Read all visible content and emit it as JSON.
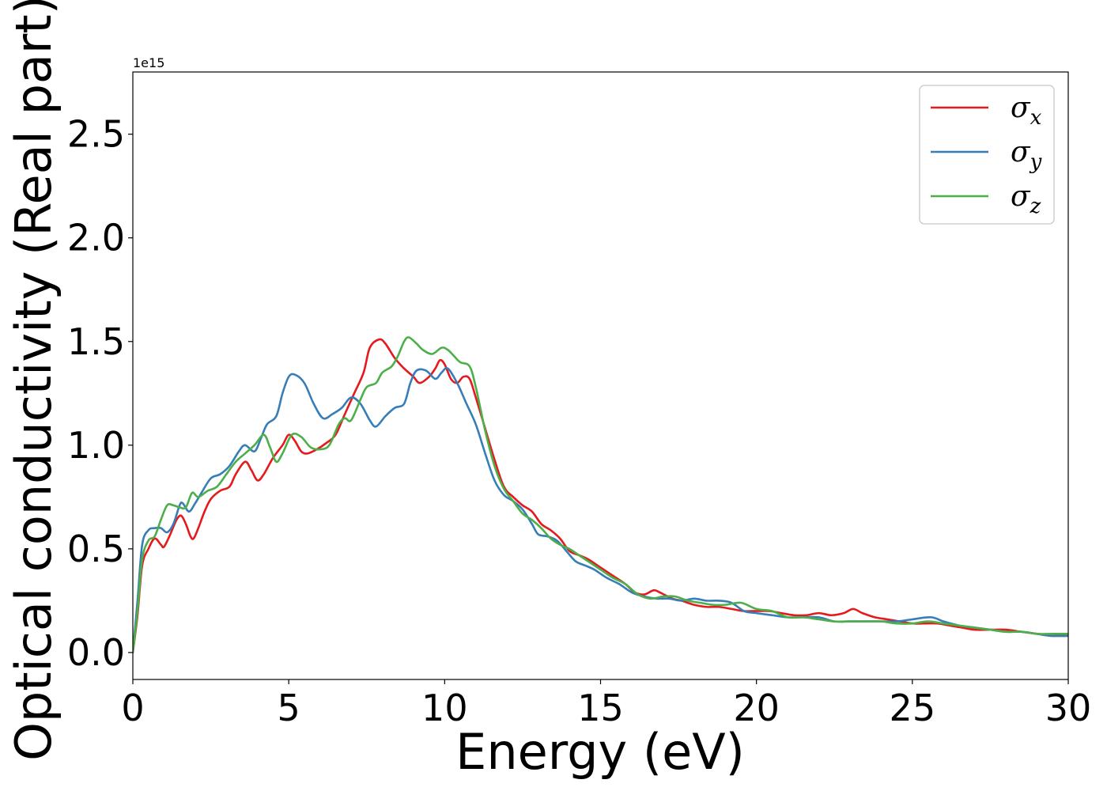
{
  "chart_data": {
    "type": "line",
    "xlabel": "Energy (eV)",
    "ylabel": "Optical conductivity (Real part)",
    "y_offset_label": "1e15",
    "y_scale_factor": 1000000000000000.0,
    "xlim": [
      0,
      30
    ],
    "ylim": [
      -0.13,
      2.8
    ],
    "x_ticks": [
      0,
      5,
      10,
      15,
      20,
      25,
      30
    ],
    "x_tick_labels": [
      "0",
      "5",
      "10",
      "15",
      "20",
      "25",
      "30"
    ],
    "y_ticks": [
      0.0,
      0.5,
      1.0,
      1.5,
      2.0,
      2.5
    ],
    "y_tick_labels": [
      "0.0",
      "0.5",
      "1.0",
      "1.5",
      "2.0",
      "2.5"
    ],
    "grid": false,
    "legend_position": "top-right",
    "series": [
      {
        "name": "σx",
        "legend_base": "σ",
        "legend_sub": "x",
        "color": "#e41a1c",
        "points": [
          [
            0,
            0
          ],
          [
            0.15,
            0.18
          ],
          [
            0.3,
            0.42
          ],
          [
            0.5,
            0.5
          ],
          [
            0.7,
            0.55
          ],
          [
            0.9,
            0.52
          ],
          [
            1.0,
            0.51
          ],
          [
            1.2,
            0.57
          ],
          [
            1.4,
            0.64
          ],
          [
            1.55,
            0.66
          ],
          [
            1.7,
            0.62
          ],
          [
            1.85,
            0.56
          ],
          [
            1.95,
            0.55
          ],
          [
            2.1,
            0.6
          ],
          [
            2.3,
            0.68
          ],
          [
            2.5,
            0.74
          ],
          [
            2.8,
            0.78
          ],
          [
            3.1,
            0.8
          ],
          [
            3.3,
            0.86
          ],
          [
            3.6,
            0.92
          ],
          [
            3.8,
            0.88
          ],
          [
            4.0,
            0.83
          ],
          [
            4.2,
            0.86
          ],
          [
            4.5,
            0.94
          ],
          [
            4.8,
            1.0
          ],
          [
            5.0,
            1.05
          ],
          [
            5.2,
            1.02
          ],
          [
            5.4,
            0.97
          ],
          [
            5.6,
            0.96
          ],
          [
            5.9,
            0.98
          ],
          [
            6.2,
            1.01
          ],
          [
            6.5,
            1.05
          ],
          [
            6.8,
            1.15
          ],
          [
            7.1,
            1.25
          ],
          [
            7.4,
            1.35
          ],
          [
            7.6,
            1.47
          ],
          [
            7.9,
            1.51
          ],
          [
            8.1,
            1.49
          ],
          [
            8.4,
            1.42
          ],
          [
            8.7,
            1.37
          ],
          [
            9.0,
            1.33
          ],
          [
            9.2,
            1.3
          ],
          [
            9.5,
            1.33
          ],
          [
            9.7,
            1.37
          ],
          [
            9.85,
            1.41
          ],
          [
            10.0,
            1.39
          ],
          [
            10.2,
            1.32
          ],
          [
            10.4,
            1.3
          ],
          [
            10.6,
            1.33
          ],
          [
            10.8,
            1.32
          ],
          [
            11.0,
            1.23
          ],
          [
            11.3,
            1.08
          ],
          [
            11.6,
            0.93
          ],
          [
            11.9,
            0.8
          ],
          [
            12.2,
            0.75
          ],
          [
            12.5,
            0.71
          ],
          [
            12.8,
            0.68
          ],
          [
            13.1,
            0.62
          ],
          [
            13.4,
            0.59
          ],
          [
            13.7,
            0.55
          ],
          [
            14.0,
            0.49
          ],
          [
            14.3,
            0.47
          ],
          [
            14.6,
            0.45
          ],
          [
            15.0,
            0.41
          ],
          [
            15.4,
            0.37
          ],
          [
            15.8,
            0.33
          ],
          [
            16.1,
            0.29
          ],
          [
            16.4,
            0.28
          ],
          [
            16.7,
            0.3
          ],
          [
            16.9,
            0.29
          ],
          [
            17.3,
            0.26
          ],
          [
            17.6,
            0.25
          ],
          [
            18.0,
            0.23
          ],
          [
            18.4,
            0.22
          ],
          [
            18.8,
            0.22
          ],
          [
            19.2,
            0.21
          ],
          [
            19.6,
            0.2
          ],
          [
            20.0,
            0.2
          ],
          [
            20.4,
            0.2
          ],
          [
            20.8,
            0.19
          ],
          [
            21.2,
            0.18
          ],
          [
            21.6,
            0.18
          ],
          [
            22.0,
            0.19
          ],
          [
            22.4,
            0.18
          ],
          [
            22.8,
            0.19
          ],
          [
            23.1,
            0.21
          ],
          [
            23.4,
            0.19
          ],
          [
            23.8,
            0.17
          ],
          [
            24.2,
            0.16
          ],
          [
            24.6,
            0.15
          ],
          [
            25.0,
            0.14
          ],
          [
            25.4,
            0.14
          ],
          [
            25.8,
            0.14
          ],
          [
            26.2,
            0.13
          ],
          [
            26.6,
            0.12
          ],
          [
            27.0,
            0.11
          ],
          [
            27.5,
            0.11
          ],
          [
            28.0,
            0.11
          ],
          [
            28.5,
            0.1
          ],
          [
            29.0,
            0.09
          ],
          [
            29.5,
            0.08
          ],
          [
            30.0,
            0.09
          ]
        ]
      },
      {
        "name": "σy",
        "legend_base": "σ",
        "legend_sub": "y",
        "color": "#377eb8",
        "points": [
          [
            0,
            0
          ],
          [
            0.15,
            0.25
          ],
          [
            0.3,
            0.52
          ],
          [
            0.5,
            0.59
          ],
          [
            0.7,
            0.6
          ],
          [
            0.9,
            0.6
          ],
          [
            1.1,
            0.58
          ],
          [
            1.3,
            0.62
          ],
          [
            1.5,
            0.71
          ],
          [
            1.6,
            0.72
          ],
          [
            1.8,
            0.68
          ],
          [
            2.0,
            0.72
          ],
          [
            2.2,
            0.77
          ],
          [
            2.5,
            0.84
          ],
          [
            2.8,
            0.86
          ],
          [
            3.1,
            0.9
          ],
          [
            3.4,
            0.97
          ],
          [
            3.6,
            1.0
          ],
          [
            3.9,
            0.97
          ],
          [
            4.1,
            1.03
          ],
          [
            4.3,
            1.1
          ],
          [
            4.6,
            1.14
          ],
          [
            4.8,
            1.25
          ],
          [
            5.0,
            1.33
          ],
          [
            5.2,
            1.34
          ],
          [
            5.5,
            1.3
          ],
          [
            5.8,
            1.2
          ],
          [
            6.1,
            1.13
          ],
          [
            6.4,
            1.15
          ],
          [
            6.7,
            1.18
          ],
          [
            7.0,
            1.23
          ],
          [
            7.3,
            1.2
          ],
          [
            7.6,
            1.12
          ],
          [
            7.8,
            1.09
          ],
          [
            8.1,
            1.14
          ],
          [
            8.4,
            1.18
          ],
          [
            8.7,
            1.2
          ],
          [
            8.9,
            1.3
          ],
          [
            9.1,
            1.36
          ],
          [
            9.4,
            1.36
          ],
          [
            9.7,
            1.32
          ],
          [
            9.9,
            1.35
          ],
          [
            10.1,
            1.37
          ],
          [
            10.4,
            1.3
          ],
          [
            10.7,
            1.2
          ],
          [
            11.0,
            1.1
          ],
          [
            11.3,
            0.96
          ],
          [
            11.6,
            0.83
          ],
          [
            11.9,
            0.76
          ],
          [
            12.2,
            0.73
          ],
          [
            12.5,
            0.69
          ],
          [
            12.8,
            0.62
          ],
          [
            13.0,
            0.57
          ],
          [
            13.3,
            0.56
          ],
          [
            13.6,
            0.54
          ],
          [
            13.9,
            0.49
          ],
          [
            14.2,
            0.44
          ],
          [
            14.5,
            0.42
          ],
          [
            14.8,
            0.4
          ],
          [
            15.2,
            0.36
          ],
          [
            15.6,
            0.33
          ],
          [
            16.0,
            0.29
          ],
          [
            16.4,
            0.27
          ],
          [
            16.8,
            0.26
          ],
          [
            17.2,
            0.26
          ],
          [
            17.6,
            0.25
          ],
          [
            18.0,
            0.26
          ],
          [
            18.4,
            0.25
          ],
          [
            18.8,
            0.25
          ],
          [
            19.2,
            0.24
          ],
          [
            19.6,
            0.2
          ],
          [
            20.0,
            0.19
          ],
          [
            20.5,
            0.18
          ],
          [
            21.0,
            0.17
          ],
          [
            21.5,
            0.17
          ],
          [
            22.0,
            0.17
          ],
          [
            22.5,
            0.15
          ],
          [
            23.0,
            0.15
          ],
          [
            23.5,
            0.15
          ],
          [
            24.0,
            0.15
          ],
          [
            24.5,
            0.15
          ],
          [
            25.0,
            0.16
          ],
          [
            25.6,
            0.17
          ],
          [
            26.0,
            0.15
          ],
          [
            26.5,
            0.13
          ],
          [
            27.0,
            0.12
          ],
          [
            27.5,
            0.11
          ],
          [
            28.0,
            0.1
          ],
          [
            28.5,
            0.1
          ],
          [
            29.0,
            0.09
          ],
          [
            29.5,
            0.08
          ],
          [
            30.0,
            0.08
          ]
        ]
      },
      {
        "name": "σz",
        "legend_base": "σ",
        "legend_sub": "z",
        "color": "#4daf4a",
        "points": [
          [
            0,
            0
          ],
          [
            0.15,
            0.2
          ],
          [
            0.3,
            0.45
          ],
          [
            0.5,
            0.54
          ],
          [
            0.7,
            0.56
          ],
          [
            0.9,
            0.64
          ],
          [
            1.1,
            0.71
          ],
          [
            1.3,
            0.71
          ],
          [
            1.5,
            0.7
          ],
          [
            1.7,
            0.7
          ],
          [
            1.9,
            0.77
          ],
          [
            2.1,
            0.75
          ],
          [
            2.4,
            0.78
          ],
          [
            2.7,
            0.8
          ],
          [
            3.0,
            0.86
          ],
          [
            3.3,
            0.92
          ],
          [
            3.6,
            0.96
          ],
          [
            3.9,
            1.0
          ],
          [
            4.2,
            1.05
          ],
          [
            4.4,
            0.99
          ],
          [
            4.6,
            0.92
          ],
          [
            4.8,
            0.96
          ],
          [
            5.1,
            1.05
          ],
          [
            5.4,
            1.04
          ],
          [
            5.7,
            0.99
          ],
          [
            6.0,
            0.98
          ],
          [
            6.3,
            1.0
          ],
          [
            6.6,
            1.1
          ],
          [
            6.8,
            1.13
          ],
          [
            7.0,
            1.12
          ],
          [
            7.3,
            1.22
          ],
          [
            7.5,
            1.28
          ],
          [
            7.8,
            1.3
          ],
          [
            8.0,
            1.35
          ],
          [
            8.3,
            1.38
          ],
          [
            8.5,
            1.43
          ],
          [
            8.7,
            1.5
          ],
          [
            8.85,
            1.52
          ],
          [
            9.1,
            1.49
          ],
          [
            9.3,
            1.46
          ],
          [
            9.6,
            1.44
          ],
          [
            9.9,
            1.47
          ],
          [
            10.1,
            1.46
          ],
          [
            10.3,
            1.43
          ],
          [
            10.5,
            1.4
          ],
          [
            10.8,
            1.38
          ],
          [
            11.0,
            1.28
          ],
          [
            11.3,
            1.07
          ],
          [
            11.6,
            0.9
          ],
          [
            11.9,
            0.79
          ],
          [
            12.2,
            0.73
          ],
          [
            12.5,
            0.67
          ],
          [
            12.8,
            0.64
          ],
          [
            13.1,
            0.6
          ],
          [
            13.4,
            0.55
          ],
          [
            13.7,
            0.52
          ],
          [
            14.0,
            0.5
          ],
          [
            14.3,
            0.47
          ],
          [
            14.6,
            0.44
          ],
          [
            15.0,
            0.4
          ],
          [
            15.4,
            0.36
          ],
          [
            15.8,
            0.33
          ],
          [
            16.2,
            0.28
          ],
          [
            16.6,
            0.26
          ],
          [
            17.0,
            0.27
          ],
          [
            17.4,
            0.27
          ],
          [
            17.8,
            0.25
          ],
          [
            18.2,
            0.24
          ],
          [
            18.6,
            0.23
          ],
          [
            19.0,
            0.23
          ],
          [
            19.5,
            0.24
          ],
          [
            20.0,
            0.21
          ],
          [
            20.5,
            0.2
          ],
          [
            21.0,
            0.17
          ],
          [
            21.5,
            0.17
          ],
          [
            22.0,
            0.16
          ],
          [
            22.5,
            0.15
          ],
          [
            23.0,
            0.15
          ],
          [
            23.5,
            0.15
          ],
          [
            24.0,
            0.15
          ],
          [
            24.5,
            0.14
          ],
          [
            25.0,
            0.14
          ],
          [
            25.5,
            0.15
          ],
          [
            26.0,
            0.14
          ],
          [
            26.5,
            0.13
          ],
          [
            27.0,
            0.12
          ],
          [
            27.5,
            0.11
          ],
          [
            28.0,
            0.1
          ],
          [
            28.5,
            0.1
          ],
          [
            29.0,
            0.09
          ],
          [
            29.5,
            0.09
          ],
          [
            30.0,
            0.09
          ]
        ]
      }
    ]
  }
}
